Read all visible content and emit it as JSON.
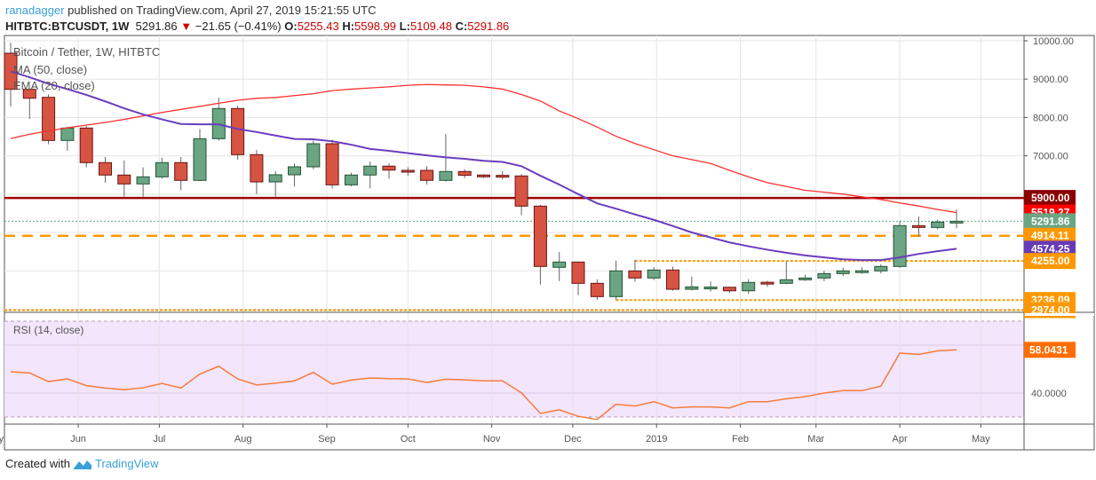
{
  "header": {
    "author": "ranadagger",
    "published_text": "published on TradingView.com, April 27, 2019 15:21:55 UTC",
    "symbol": "HITBTC:BTCUSDT, 1W",
    "last": "5291.86",
    "change": "−21.65 (−0.41%)",
    "o_label": "O:",
    "o": "5255.43",
    "h_label": "H:",
    "h": "5598.99",
    "l_label": "L:",
    "l": "5109.48",
    "c_label": "C:",
    "c": "5291.86",
    "direction_icon": "triangle-down-icon"
  },
  "footer": {
    "created_with": "Created with",
    "brand": "TradingView",
    "logo_icon": "tradingview-logo-icon"
  },
  "colors": {
    "up": "#6ba583",
    "up_border": "#225437",
    "down": "#d75442",
    "down_border": "#6b1414",
    "ma50": "#ff3030",
    "ema20": "#6a3dbf",
    "rsi": "#f57c3a",
    "resistance": "#a10000",
    "support": "#ff9800",
    "rsi_bg": "#f3e5fc"
  },
  "chart_data": [
    {
      "type": "candlestick",
      "title": "Bitcoin / Tether, 1W, HITBTC",
      "indicator_labels": [
        "MA (50, close)",
        "EMA (20, close)"
      ],
      "yticks": [
        "10000.00",
        "9000.00",
        "8000.00",
        "7000.00"
      ],
      "ylim": [
        2900,
        10150
      ],
      "grid": true,
      "xticks": [
        "May",
        "Jun",
        "Jul",
        "Aug",
        "Sep",
        "Oct",
        "Nov",
        "Dec",
        "2019",
        "Feb",
        "Mar",
        "Apr",
        "May"
      ],
      "xtick_dates": [
        "2018-05-01",
        "2018-06-01",
        "2018-07-01",
        "2018-08-01",
        "2018-09-01",
        "2018-10-01",
        "2018-11-01",
        "2018-12-01",
        "2019-01-01",
        "2019-02-01",
        "2019-03-01",
        "2019-04-01",
        "2019-05-01"
      ],
      "first_week": "2018-05-07",
      "candles": [
        [
          9676,
          8734,
          9950,
          8287
        ],
        [
          8734,
          8502,
          8760,
          7963
        ],
        [
          8525,
          7400,
          8600,
          7300
        ],
        [
          7400,
          7724,
          7760,
          7130
        ],
        [
          7724,
          6822,
          7780,
          6700
        ],
        [
          6822,
          6498,
          6970,
          6300
        ],
        [
          6498,
          6266,
          6880,
          5933
        ],
        [
          6266,
          6451,
          6700,
          5933
        ],
        [
          6451,
          6822,
          6950,
          6400
        ],
        [
          6822,
          6359,
          6970,
          6100
        ],
        [
          6359,
          7446,
          7700,
          6359
        ],
        [
          7446,
          8234,
          8518,
          7400
        ],
        [
          8234,
          7030,
          8300,
          6900
        ],
        [
          7030,
          6319,
          7150,
          6000
        ],
        [
          6319,
          6505,
          6600,
          5933
        ],
        [
          6505,
          6713,
          6800,
          6200
        ],
        [
          6713,
          7315,
          7400,
          6650
        ],
        [
          7315,
          6242,
          7420,
          6150
        ],
        [
          6242,
          6498,
          6560,
          6200
        ],
        [
          6498,
          6730,
          6850,
          6150
        ],
        [
          6730,
          6627,
          6800,
          6400
        ],
        [
          6620,
          6610,
          6700,
          6480
        ],
        [
          6620,
          6359,
          6730,
          6250
        ],
        [
          6359,
          6590,
          7570,
          6330
        ],
        [
          6590,
          6490,
          6650,
          6420
        ],
        [
          6498,
          6490,
          6520,
          6420
        ],
        [
          6490,
          6474,
          6600,
          6380
        ],
        [
          6474,
          5687,
          6520,
          5447
        ],
        [
          5687,
          4113,
          5720,
          3640
        ],
        [
          4090,
          4228,
          4490,
          3733
        ],
        [
          4228,
          3673,
          4240,
          3363
        ],
        [
          3673,
          3326,
          3780,
          3236
        ],
        [
          3326,
          3997,
          4265,
          3236
        ],
        [
          3997,
          3812,
          4290,
          3720
        ],
        [
          3812,
          4020,
          4100,
          3760
        ],
        [
          4020,
          3518,
          4110,
          3480
        ],
        [
          3518,
          3580,
          3850,
          3490
        ],
        [
          3575,
          3575,
          3720,
          3460
        ],
        [
          3570,
          3478,
          3580,
          3420
        ],
        [
          3478,
          3696,
          3780,
          3400
        ],
        [
          3700,
          3690,
          3740,
          3580
        ],
        [
          3673,
          3766,
          4250,
          3650
        ],
        [
          3766,
          3812,
          3900,
          3740
        ],
        [
          3812,
          3927,
          4000,
          3730
        ],
        [
          3927,
          3997,
          4080,
          3860
        ],
        [
          3997,
          4000,
          4090,
          3920
        ],
        [
          3997,
          4113,
          4170,
          3930
        ],
        [
          4113,
          5178,
          5300,
          4080
        ],
        [
          5178,
          5130,
          5416,
          4891
        ],
        [
          5130,
          5270,
          5330,
          5080
        ],
        [
          5255.43,
          5291.86,
          5598.99,
          5109.48
        ]
      ],
      "ma50": [
        7450,
        7560,
        7650,
        7730,
        7800,
        7870,
        7950,
        8040,
        8130,
        8210,
        8290,
        8370,
        8450,
        8500,
        8520,
        8570,
        8620,
        8700,
        8740,
        8770,
        8800,
        8840,
        8860,
        8850,
        8840,
        8800,
        8740,
        8600,
        8430,
        8170,
        7970,
        7750,
        7510,
        7320,
        7160,
        7000,
        6900,
        6800,
        6620,
        6450,
        6300,
        6200,
        6100,
        6050,
        6000,
        5930,
        5860,
        5770,
        5690,
        5600,
        5519.27
      ],
      "ema20": [
        9200,
        9050,
        8880,
        8740,
        8590,
        8420,
        8240,
        8080,
        7950,
        7830,
        7820,
        7820,
        7700,
        7620,
        7530,
        7440,
        7430,
        7380,
        7290,
        7180,
        7130,
        7070,
        7010,
        6960,
        6920,
        6870,
        6840,
        6730,
        6480,
        6250,
        6000,
        5760,
        5620,
        5470,
        5330,
        5170,
        5000,
        4870,
        4740,
        4640,
        4550,
        4470,
        4400,
        4350,
        4300,
        4280,
        4280,
        4350,
        4440,
        4510,
        4574.25
      ],
      "levels": [
        {
          "value": 5900.0,
          "label": "5900.00",
          "style": "solid",
          "color": "#8b0000",
          "line": "#a10000"
        },
        {
          "value": 5519.27,
          "label": "5519.27",
          "style": "none",
          "color": "#ff0000"
        },
        {
          "value": 5291.86,
          "label": "5291.86",
          "style": "dotted-green",
          "color": "#6ba583"
        },
        {
          "value": 4914.11,
          "label": "4914.11",
          "style": "dashed",
          "color": "#ff9800"
        },
        {
          "value": 4574.25,
          "label": "4574.25",
          "style": "none",
          "color": "#673ab7"
        },
        {
          "value": 4255.0,
          "label": "4255.00",
          "style": "dotted",
          "color": "#ff9800",
          "from_week": 33
        },
        {
          "value": 3236.09,
          "label": "3236.09",
          "style": "dotted",
          "color": "#ff9800",
          "from_week": 32
        },
        {
          "value": 2974.0,
          "label": "2974.00",
          "style": "dotted",
          "color": "#ff9800"
        }
      ]
    },
    {
      "type": "line",
      "title": "RSI (14, close)",
      "yticks": [
        "40.0000"
      ],
      "last_label": "58.0431",
      "bands": [
        30,
        70
      ],
      "values": [
        48.9,
        48.4,
        44.8,
        45.9,
        43.1,
        42.1,
        41.4,
        42.2,
        44.0,
        42.1,
        47.9,
        51.2,
        45.9,
        43.4,
        44.1,
        45.1,
        48.6,
        43.7,
        45.4,
        46.3,
        46.0,
        45.9,
        44.4,
        45.8,
        45.5,
        45.1,
        45.1,
        40.1,
        31.5,
        33.0,
        30.3,
        29.0,
        35.3,
        34.6,
        36.4,
        33.8,
        34.2,
        34.2,
        33.8,
        36.4,
        36.4,
        37.6,
        38.5,
        40.0,
        41.0,
        41.0,
        42.9,
        56.7,
        56.1,
        57.6,
        58.0431
      ]
    }
  ]
}
